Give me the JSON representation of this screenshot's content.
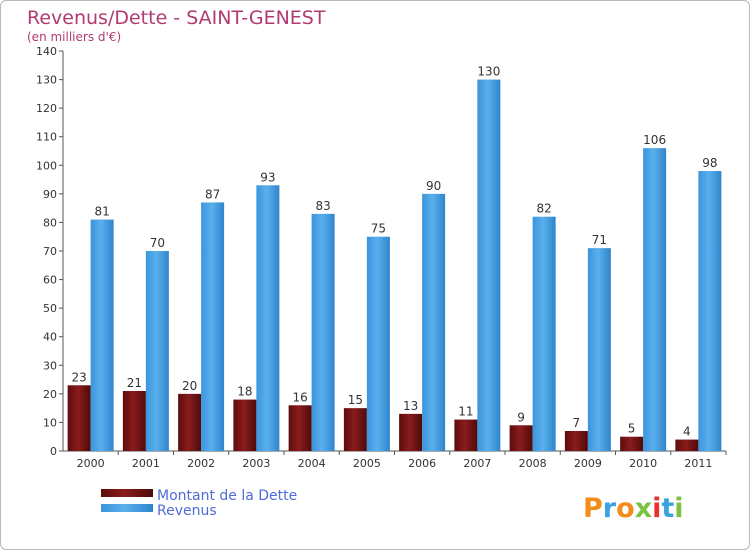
{
  "chart_data": {
    "type": "bar",
    "title": "Revenus/Dette - SAINT-GENEST",
    "subtitle": "(en milliers d'€)",
    "categories": [
      "2000",
      "2001",
      "2002",
      "2003",
      "2004",
      "2005",
      "2006",
      "2007",
      "2008",
      "2009",
      "2010",
      "2011"
    ],
    "series": [
      {
        "name": "Montant de la Dette",
        "color": "#7a1414",
        "values": [
          23,
          21,
          20,
          18,
          16,
          15,
          13,
          11,
          9,
          7,
          5,
          4
        ]
      },
      {
        "name": "Revenus",
        "color": "#4da3e6",
        "values": [
          81,
          70,
          87,
          93,
          83,
          75,
          90,
          130,
          82,
          71,
          106,
          98
        ]
      }
    ],
    "ylim": [
      0,
      140
    ],
    "yticks": [
      0,
      10,
      20,
      30,
      40,
      50,
      60,
      70,
      80,
      90,
      100,
      110,
      120,
      130,
      140
    ],
    "grid": false,
    "legend_position": "bottom-left"
  },
  "logo": {
    "text": "Proxiti",
    "colors": [
      "#f28c1a",
      "#39a3dd",
      "#f28c1a",
      "#7cc242",
      "#e8312f",
      "#39a3dd",
      "#7cc242"
    ]
  }
}
